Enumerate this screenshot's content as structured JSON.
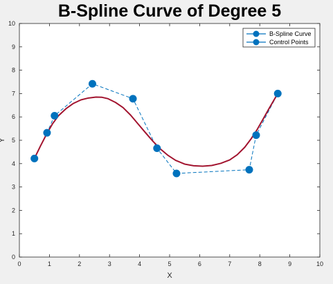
{
  "chart_data": {
    "type": "line",
    "title": "B-Spline Curve of Degree 5",
    "xlabel": "X",
    "ylabel": "Y",
    "xlim": [
      0,
      10
    ],
    "ylim": [
      0,
      10
    ],
    "grid": false,
    "legend_position": "top-right",
    "x_ticks": [
      "0",
      "1",
      "2",
      "3",
      "4",
      "5",
      "6",
      "7",
      "8",
      "9",
      "10"
    ],
    "y_ticks": [
      "0",
      "1",
      "2",
      "3",
      "4",
      "5",
      "6",
      "7",
      "8",
      "9",
      "10"
    ],
    "series": [
      {
        "name": "B-Spline Curve",
        "style": "solid",
        "color": "#a2142f",
        "x": [
          0.5,
          0.7,
          0.9,
          1.1,
          1.3,
          1.55,
          1.8,
          2.05,
          2.3,
          2.55,
          2.75,
          2.95,
          3.2,
          3.45,
          3.7,
          3.95,
          4.2,
          4.45,
          4.7,
          4.95,
          5.2,
          5.5,
          5.8,
          6.1,
          6.4,
          6.7,
          7.0,
          7.25,
          7.5,
          7.7,
          7.9,
          8.1,
          8.3,
          8.45,
          8.6
        ],
        "y": [
          4.22,
          4.75,
          5.25,
          5.7,
          6.05,
          6.35,
          6.58,
          6.73,
          6.81,
          6.85,
          6.84,
          6.78,
          6.62,
          6.4,
          6.08,
          5.7,
          5.32,
          4.95,
          4.62,
          4.35,
          4.14,
          3.98,
          3.91,
          3.89,
          3.92,
          4.01,
          4.16,
          4.38,
          4.7,
          5.04,
          5.43,
          5.88,
          6.34,
          6.67,
          7.0
        ]
      },
      {
        "name": "Control Points",
        "style": "dashed",
        "color": "#0072bd",
        "x": [
          0.5,
          0.92,
          1.17,
          2.43,
          3.78,
          4.58,
          5.23,
          7.65,
          7.88,
          8.6
        ],
        "y": [
          4.22,
          5.32,
          6.05,
          7.42,
          6.78,
          4.66,
          3.58,
          3.74,
          5.22,
          7.0
        ]
      }
    ]
  }
}
